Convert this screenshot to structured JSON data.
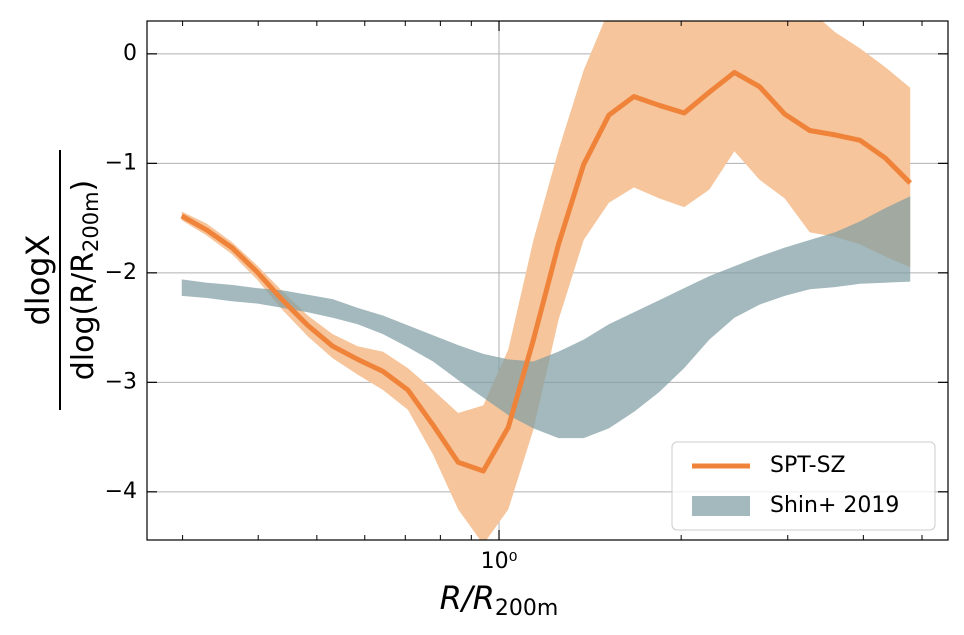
{
  "chart_data": {
    "type": "line",
    "xlabel": {
      "main": "R/R",
      "sub": "200m"
    },
    "ylabel": {
      "numerator": "dlogX",
      "denominator": {
        "main": "dlog(R/R",
        "sub": "200m",
        "end": ")"
      }
    },
    "xlog": true,
    "xlim": [
      0.262,
      5.52
    ],
    "ylim": [
      -4.44,
      0.3
    ],
    "xticks": [
      {
        "value": 1,
        "label": "10⁰"
      }
    ],
    "xminorticks": [
      0.3,
      0.4,
      0.5,
      0.6,
      0.7,
      0.8,
      0.9,
      2,
      3,
      4,
      5
    ],
    "yticks": [
      {
        "value": -4,
        "label": "−4"
      },
      {
        "value": -3,
        "label": "−3"
      },
      {
        "value": -2,
        "label": "−2"
      },
      {
        "value": -1,
        "label": "−1"
      },
      0
    ],
    "grid": true,
    "legend": "lower right",
    "x": [
      0.299,
      0.329,
      0.362,
      0.398,
      0.439,
      0.483,
      0.531,
      0.584,
      0.643,
      0.707,
      0.778,
      0.856,
      0.942,
      1.036,
      1.14,
      1.254,
      1.38,
      1.519,
      1.671,
      1.839,
      2.023,
      2.226,
      2.449,
      2.695,
      2.965,
      3.262,
      3.589,
      3.95,
      4.345,
      4.781
    ],
    "series": [
      {
        "name": "SPT-SZ",
        "color": "#f0833a",
        "band_color": "#f6c59c",
        "values": [
          -1.48,
          -1.61,
          -1.77,
          -1.99,
          -2.25,
          -2.48,
          -2.67,
          -2.79,
          -2.9,
          -3.07,
          -3.39,
          -3.73,
          -3.81,
          -3.41,
          -2.61,
          -1.74,
          -1.01,
          -0.56,
          -0.39,
          -0.47,
          -0.54,
          -0.35,
          -0.17,
          -0.3,
          -0.55,
          -0.7,
          -0.74,
          -0.79,
          -0.95,
          -1.18
        ],
        "upper": [
          -1.44,
          -1.55,
          -1.72,
          -1.93,
          -2.17,
          -2.39,
          -2.56,
          -2.67,
          -2.72,
          -2.87,
          -3.07,
          -3.28,
          -3.21,
          -2.7,
          -1.7,
          -0.88,
          -0.15,
          0.4,
          0.7,
          0.9,
          1.0,
          1.0,
          0.9,
          0.8,
          0.6,
          0.4,
          0.2,
          0.05,
          -0.12,
          -0.31
        ],
        "lower": [
          -1.52,
          -1.66,
          -1.83,
          -2.06,
          -2.34,
          -2.58,
          -2.78,
          -2.93,
          -3.07,
          -3.25,
          -3.66,
          -4.16,
          -4.48,
          -4.16,
          -3.43,
          -2.43,
          -1.7,
          -1.36,
          -1.22,
          -1.32,
          -1.4,
          -1.24,
          -0.89,
          -1.15,
          -1.32,
          -1.63,
          -1.67,
          -1.74,
          -1.85,
          -1.95
        ]
      },
      {
        "name": "Shin+ 2019",
        "color": "#7f9ea3",
        "upper": [
          -2.06,
          -2.09,
          -2.11,
          -2.14,
          -2.16,
          -2.2,
          -2.24,
          -2.32,
          -2.39,
          -2.48,
          -2.57,
          -2.66,
          -2.74,
          -2.79,
          -2.81,
          -2.72,
          -2.61,
          -2.47,
          -2.36,
          -2.25,
          -2.14,
          -2.03,
          -1.94,
          -1.85,
          -1.77,
          -1.7,
          -1.63,
          -1.53,
          -1.41,
          -1.3
        ],
        "lower": [
          -2.21,
          -2.23,
          -2.26,
          -2.28,
          -2.32,
          -2.36,
          -2.41,
          -2.47,
          -2.56,
          -2.68,
          -2.81,
          -2.98,
          -3.14,
          -3.3,
          -3.42,
          -3.51,
          -3.51,
          -3.42,
          -3.27,
          -3.09,
          -2.87,
          -2.61,
          -2.41,
          -2.29,
          -2.21,
          -2.15,
          -2.13,
          -2.1,
          -2.09,
          -2.08
        ]
      }
    ]
  }
}
